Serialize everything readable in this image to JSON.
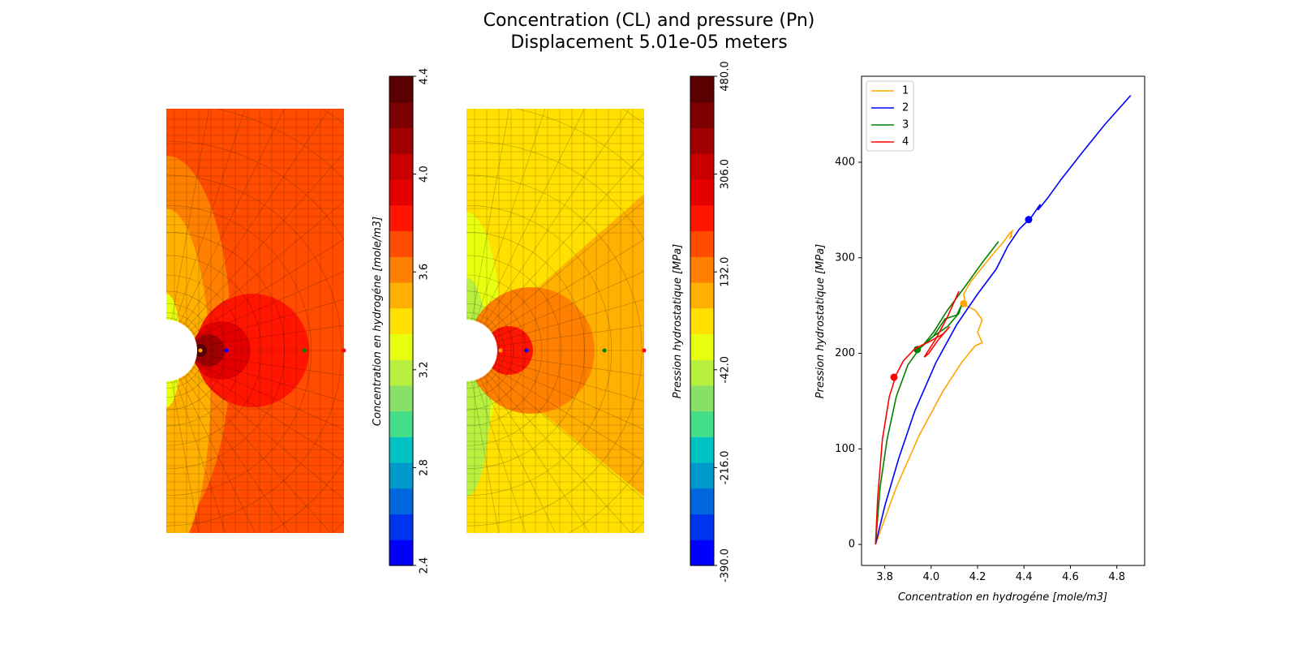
{
  "figure": {
    "title": "Concentration (CL) and pressure (Pn)",
    "subtitle": "Displacement 5.01e-05 meters"
  },
  "colors": {
    "levels": [
      "#0000ff",
      "#0033ee",
      "#0066dd",
      "#0099cc",
      "#00c2c2",
      "#44dd88",
      "#88e066",
      "#b8f040",
      "#e8ff10",
      "#ffe000",
      "#ffb000",
      "#ff8000",
      "#ff4c00",
      "#ff1500",
      "#e50000",
      "#c80000",
      "#a00000",
      "#7c0000",
      "#5a0000"
    ],
    "series": [
      "#ffa500",
      "#0000ff",
      "#008000",
      "#ff0000"
    ]
  },
  "colorbars": [
    {
      "label": "Concentration en hydrogéne [mole/m3]",
      "ticks": [
        "2.4",
        "2.8",
        "3.2",
        "3.6",
        "4.0",
        "4.4"
      ],
      "range": [
        2.4,
        4.4
      ]
    },
    {
      "label": "Pression hydrostatique [MPa]",
      "ticks": [
        "-390.0",
        "-216.0",
        "-42.0",
        "132.0",
        "306.0",
        "480.0"
      ],
      "range": [
        -390,
        480
      ]
    }
  ],
  "chart_data": {
    "type": "line",
    "xlabel": "Concentration en hydrogéne [mole/m3]",
    "ylabel": "Pression hydrostatique [MPa]",
    "xlim": [
      3.7,
      4.92
    ],
    "ylim": [
      -22,
      490
    ],
    "xticks": [
      "3.8",
      "4.0",
      "4.2",
      "4.4",
      "4.6",
      "4.8"
    ],
    "yticks": [
      "0",
      "100",
      "200",
      "300",
      "400"
    ],
    "legend_position": "upper-left",
    "series": [
      {
        "name": "1",
        "color": "#ffa500",
        "points": [
          [
            3.76,
            0
          ],
          [
            3.85,
            60
          ],
          [
            3.95,
            115
          ],
          [
            4.05,
            160
          ],
          [
            4.13,
            190
          ],
          [
            4.19,
            208
          ],
          [
            4.22,
            211
          ],
          [
            4.2,
            222
          ],
          [
            4.22,
            235
          ],
          [
            4.19,
            245
          ],
          [
            4.15,
            250
          ],
          [
            4.14,
            262
          ],
          [
            4.17,
            275
          ],
          [
            4.22,
            290
          ],
          [
            4.27,
            305
          ],
          [
            4.31,
            316
          ],
          [
            4.34,
            326
          ],
          [
            4.35,
            328
          ],
          [
            4.34,
            321
          ],
          [
            4.35,
            323
          ]
        ],
        "marker": [
          4.14,
          252
        ]
      },
      {
        "name": "2",
        "color": "#0000ff",
        "points": [
          [
            3.76,
            0
          ],
          [
            3.8,
            40
          ],
          [
            3.86,
            90
          ],
          [
            3.93,
            140
          ],
          [
            4.02,
            190
          ],
          [
            4.11,
            230
          ],
          [
            4.2,
            262
          ],
          [
            4.28,
            288
          ],
          [
            4.33,
            312
          ],
          [
            4.38,
            330
          ],
          [
            4.43,
            342
          ],
          [
            4.47,
            356
          ],
          [
            4.46,
            350
          ],
          [
            4.5,
            362
          ],
          [
            4.56,
            382
          ],
          [
            4.65,
            410
          ],
          [
            4.75,
            440
          ],
          [
            4.86,
            470
          ]
        ],
        "marker": [
          4.42,
          340
        ]
      },
      {
        "name": "3",
        "color": "#008000",
        "points": [
          [
            3.76,
            0
          ],
          [
            3.78,
            60
          ],
          [
            3.81,
            110
          ],
          [
            3.85,
            155
          ],
          [
            3.9,
            188
          ],
          [
            3.95,
            205
          ],
          [
            4.01,
            218
          ],
          [
            4.07,
            228
          ],
          [
            4.12,
            242
          ],
          [
            4.13,
            250
          ],
          [
            4.11,
            240
          ],
          [
            4.06,
            236
          ],
          [
            4.01,
            218
          ],
          [
            3.96,
            207
          ],
          [
            4.01,
            222
          ],
          [
            4.07,
            245
          ],
          [
            4.14,
            268
          ],
          [
            4.22,
            295
          ],
          [
            4.29,
            317
          ]
        ],
        "marker": [
          3.94,
          204
        ]
      },
      {
        "name": "4",
        "color": "#ff0000",
        "points": [
          [
            3.76,
            0
          ],
          [
            3.77,
            50
          ],
          [
            3.79,
            110
          ],
          [
            3.82,
            155
          ],
          [
            3.85,
            178
          ],
          [
            3.88,
            192
          ],
          [
            3.93,
            205
          ],
          [
            3.99,
            212
          ],
          [
            4.05,
            220
          ],
          [
            4.08,
            228
          ],
          [
            4.03,
            214
          ],
          [
            3.99,
            200
          ],
          [
            3.97,
            196
          ],
          [
            4.02,
            215
          ],
          [
            4.07,
            238
          ],
          [
            4.12,
            265
          ]
        ],
        "marker": [
          3.84,
          175
        ]
      }
    ]
  }
}
